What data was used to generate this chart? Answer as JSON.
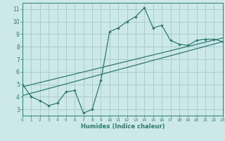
{
  "title": "",
  "xlabel": "Humidex (Indice chaleur)",
  "bg_color": "#cce8e8",
  "grid_color": "#aacccc",
  "line_color": "#2d7a6e",
  "xmin": 0,
  "xmax": 23,
  "ymin": 2.5,
  "ymax": 11.5,
  "yticks": [
    3,
    4,
    5,
    6,
    7,
    8,
    9,
    10,
    11
  ],
  "xticks": [
    0,
    1,
    2,
    3,
    4,
    5,
    6,
    7,
    8,
    9,
    10,
    11,
    12,
    13,
    14,
    15,
    16,
    17,
    18,
    19,
    20,
    21,
    22,
    23
  ],
  "line1_x": [
    0,
    1,
    2,
    3,
    4,
    5,
    6,
    7,
    8,
    9,
    10,
    11,
    12,
    13,
    14,
    15,
    16,
    17,
    18,
    19,
    20,
    21,
    22,
    23
  ],
  "line1_y": [
    5.0,
    4.0,
    3.7,
    3.3,
    3.5,
    4.4,
    4.5,
    2.7,
    3.0,
    5.3,
    9.2,
    9.5,
    10.0,
    10.4,
    11.1,
    9.5,
    9.7,
    8.5,
    8.2,
    8.1,
    8.5,
    8.6,
    8.6,
    8.4
  ],
  "line2_x": [
    0,
    23
  ],
  "line2_y": [
    4.1,
    8.4
  ],
  "line3_x": [
    0,
    23
  ],
  "line3_y": [
    4.8,
    8.7
  ],
  "xlabel_fontsize": 6.0,
  "tick_fontsize_x": 4.2,
  "tick_fontsize_y": 5.5
}
